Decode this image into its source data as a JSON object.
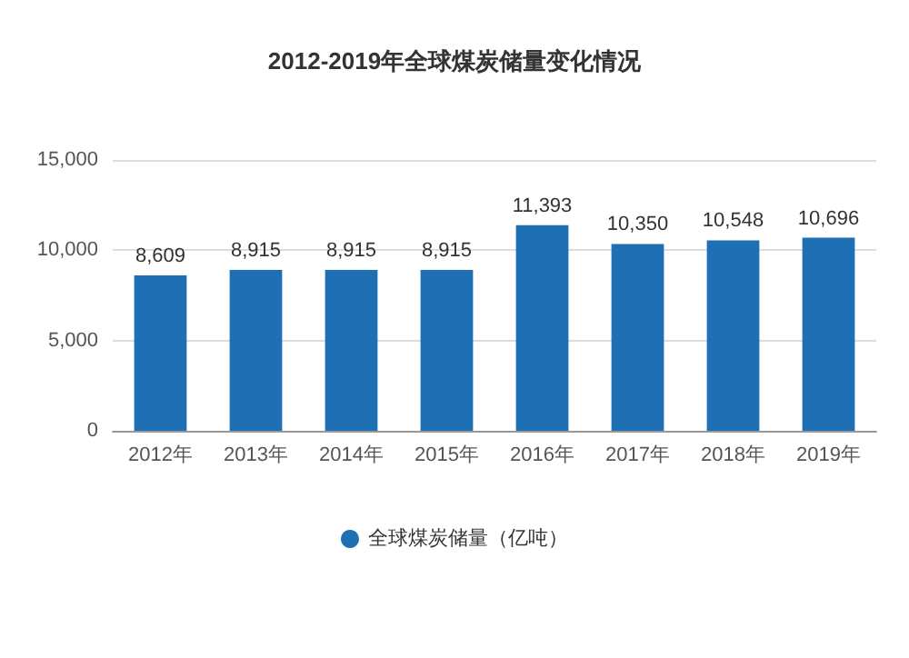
{
  "chart_data": {
    "type": "bar",
    "title": "2012-2019年全球煤炭储量变化情况",
    "categories": [
      "2012年",
      "2013年",
      "2014年",
      "2015年",
      "2016年",
      "2017年",
      "2018年",
      "2019年"
    ],
    "series": [
      {
        "name": "全球煤炭储量（亿吨）",
        "color": "#1f6fb5",
        "values": [
          8609,
          8915,
          8915,
          8915,
          11393,
          10350,
          10548,
          10696
        ]
      }
    ],
    "value_labels": [
      "8,609",
      "8,915",
      "8,915",
      "8,915",
      "11,393",
      "10,350",
      "10,548",
      "10,696"
    ],
    "ylim": [
      0,
      15000
    ],
    "yticks": [
      {
        "value": 0,
        "label": "0"
      },
      {
        "value": 5000,
        "label": "5,000"
      },
      {
        "value": 10000,
        "label": "10,000"
      },
      {
        "value": 15000,
        "label": "15,000"
      }
    ],
    "grid": "y",
    "legend": "bottom"
  }
}
